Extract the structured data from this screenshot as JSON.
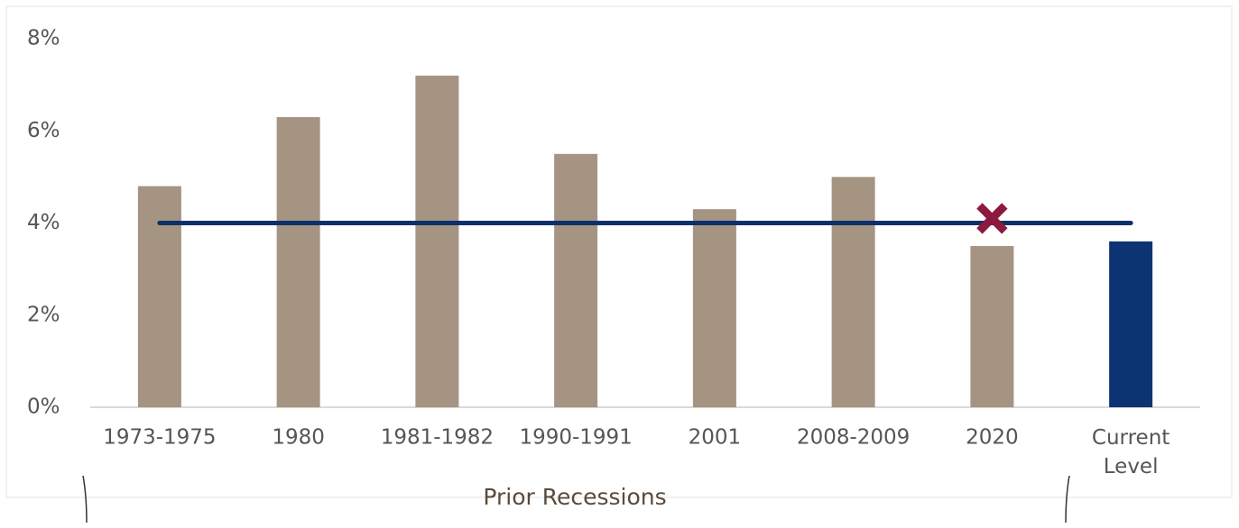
{
  "chart_data": {
    "type": "bar",
    "categories": [
      "1973-1975",
      "1980",
      "1981-1982",
      "1990-1991",
      "2001",
      "2008-2009",
      "2020",
      "Current Level"
    ],
    "values": [
      4.8,
      6.3,
      7.2,
      5.5,
      4.3,
      5.0,
      3.5,
      3.6
    ],
    "colors": [
      "#a69483",
      "#a69483",
      "#a69483",
      "#a69483",
      "#a69483",
      "#a69483",
      "#a69483",
      "#0d3472"
    ],
    "ylim": [
      0,
      8
    ],
    "yticks": [
      {
        "value": 0,
        "label": "0%"
      },
      {
        "value": 2,
        "label": "2%"
      },
      {
        "value": 4,
        "label": "4%"
      },
      {
        "value": 6,
        "label": "6%"
      },
      {
        "value": 8,
        "label": "8%"
      }
    ],
    "reference_line": {
      "value": 4,
      "color": "#0d2f6b"
    },
    "markers": [
      {
        "category": "2020",
        "value": 4.1,
        "color": "#8b1a3e"
      }
    ],
    "annotations": [
      "Prior Recessions"
    ]
  }
}
